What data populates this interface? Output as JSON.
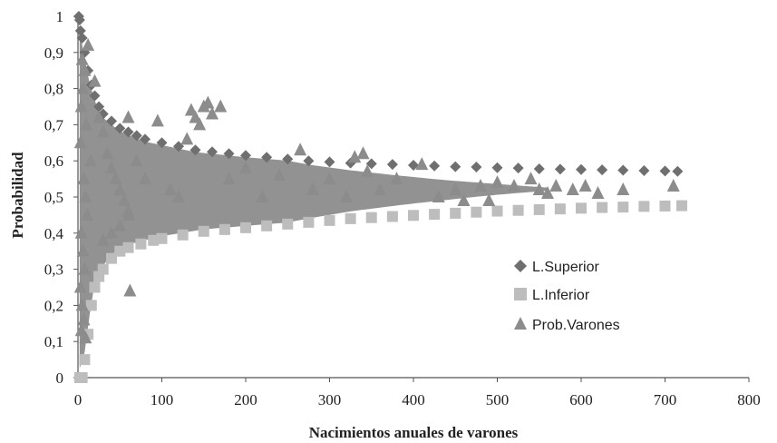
{
  "chart_data": {
    "type": "scatter",
    "title": "",
    "xlabel": "Nacimientos  anuales de varones",
    "ylabel": "Probabilidad",
    "xlim": [
      0,
      800
    ],
    "ylim": [
      0,
      1
    ],
    "x_ticks": [
      "0",
      "100",
      "200",
      "300",
      "400",
      "500",
      "600",
      "700",
      "800"
    ],
    "y_ticks": [
      "0",
      "0,1",
      "0,2",
      "0,3",
      "0,4",
      "0,5",
      "0,6",
      "0,7",
      "0,8",
      "0,9",
      "1"
    ],
    "legend_position": "right-center",
    "grid": false,
    "series": [
      {
        "name": "L.Superior",
        "marker": "diamond",
        "color": "#6f6f6f",
        "points": [
          [
            1,
            1
          ],
          [
            2,
            0.99
          ],
          [
            3,
            0.96
          ],
          [
            5,
            0.94
          ],
          [
            8,
            0.9
          ],
          [
            12,
            0.85
          ],
          [
            16,
            0.81
          ],
          [
            20,
            0.78
          ],
          [
            25,
            0.75
          ],
          [
            30,
            0.73
          ],
          [
            40,
            0.71
          ],
          [
            50,
            0.69
          ],
          [
            60,
            0.68
          ],
          [
            70,
            0.67
          ],
          [
            80,
            0.66
          ],
          [
            100,
            0.65
          ],
          [
            120,
            0.64
          ],
          [
            140,
            0.63
          ],
          [
            160,
            0.625
          ],
          [
            180,
            0.62
          ],
          [
            200,
            0.615
          ],
          [
            225,
            0.61
          ],
          [
            250,
            0.605
          ],
          [
            275,
            0.6
          ],
          [
            300,
            0.597
          ],
          [
            325,
            0.594
          ],
          [
            350,
            0.592
          ],
          [
            375,
            0.59
          ],
          [
            400,
            0.588
          ],
          [
            425,
            0.586
          ],
          [
            450,
            0.584
          ],
          [
            475,
            0.583
          ],
          [
            500,
            0.581
          ],
          [
            525,
            0.58
          ],
          [
            550,
            0.578
          ],
          [
            575,
            0.577
          ],
          [
            600,
            0.576
          ],
          [
            625,
            0.575
          ],
          [
            650,
            0.574
          ],
          [
            675,
            0.573
          ],
          [
            700,
            0.572
          ],
          [
            715,
            0.571
          ]
        ]
      },
      {
        "name": "L.Inferior",
        "marker": "square",
        "color": "#bdbdbd",
        "points": [
          [
            2,
            0
          ],
          [
            5,
            0
          ],
          [
            8,
            0.05
          ],
          [
            12,
            0.12
          ],
          [
            16,
            0.2
          ],
          [
            20,
            0.25
          ],
          [
            25,
            0.28
          ],
          [
            30,
            0.3
          ],
          [
            40,
            0.33
          ],
          [
            50,
            0.35
          ],
          [
            60,
            0.36
          ],
          [
            75,
            0.37
          ],
          [
            90,
            0.38
          ],
          [
            100,
            0.385
          ],
          [
            125,
            0.395
          ],
          [
            150,
            0.405
          ],
          [
            175,
            0.41
          ],
          [
            200,
            0.415
          ],
          [
            225,
            0.42
          ],
          [
            250,
            0.425
          ],
          [
            275,
            0.43
          ],
          [
            300,
            0.435
          ],
          [
            325,
            0.44
          ],
          [
            350,
            0.443
          ],
          [
            375,
            0.446
          ],
          [
            400,
            0.449
          ],
          [
            425,
            0.452
          ],
          [
            450,
            0.455
          ],
          [
            475,
            0.458
          ],
          [
            500,
            0.461
          ],
          [
            525,
            0.463
          ],
          [
            550,
            0.465
          ],
          [
            575,
            0.467
          ],
          [
            600,
            0.469
          ],
          [
            625,
            0.471
          ],
          [
            650,
            0.472
          ],
          [
            675,
            0.474
          ],
          [
            700,
            0.475
          ],
          [
            720,
            0.476
          ]
        ]
      },
      {
        "name": "Prob.Varones",
        "marker": "triangle",
        "color": "#8c8c8c",
        "points": [
          [
            12,
            0.92
          ],
          [
            5,
            0.88
          ],
          [
            8,
            0.85
          ],
          [
            6,
            0.8
          ],
          [
            4,
            0.75
          ],
          [
            10,
            0.7
          ],
          [
            3,
            0.65
          ],
          [
            15,
            0.6
          ],
          [
            7,
            0.55
          ],
          [
            9,
            0.5
          ],
          [
            11,
            0.45
          ],
          [
            4,
            0.4
          ],
          [
            6,
            0.35
          ],
          [
            8,
            0.3
          ],
          [
            3,
            0.25
          ],
          [
            5,
            0.2
          ],
          [
            7,
            0.16
          ],
          [
            4,
            0.13
          ],
          [
            9,
            0.11
          ],
          [
            20,
            0.82
          ],
          [
            25,
            0.72
          ],
          [
            30,
            0.68
          ],
          [
            35,
            0.62
          ],
          [
            40,
            0.58
          ],
          [
            45,
            0.55
          ],
          [
            50,
            0.52
          ],
          [
            55,
            0.49
          ],
          [
            60,
            0.46
          ],
          [
            62,
            0.24
          ],
          [
            30,
            0.38
          ],
          [
            40,
            0.4
          ],
          [
            50,
            0.42
          ],
          [
            60,
            0.45
          ],
          [
            70,
            0.6
          ],
          [
            80,
            0.55
          ],
          [
            60,
            0.72
          ],
          [
            95,
            0.71
          ],
          [
            110,
            0.52
          ],
          [
            120,
            0.5
          ],
          [
            135,
            0.74
          ],
          [
            140,
            0.72
          ],
          [
            145,
            0.7
          ],
          [
            150,
            0.75
          ],
          [
            155,
            0.76
          ],
          [
            160,
            0.73
          ],
          [
            170,
            0.75
          ],
          [
            130,
            0.66
          ],
          [
            180,
            0.55
          ],
          [
            200,
            0.58
          ],
          [
            220,
            0.5
          ],
          [
            240,
            0.56
          ],
          [
            265,
            0.63
          ],
          [
            280,
            0.52
          ],
          [
            300,
            0.55
          ],
          [
            320,
            0.5
          ],
          [
            330,
            0.61
          ],
          [
            340,
            0.62
          ],
          [
            345,
            0.57
          ],
          [
            360,
            0.52
          ],
          [
            380,
            0.55
          ],
          [
            410,
            0.59
          ],
          [
            430,
            0.5
          ],
          [
            450,
            0.52
          ],
          [
            460,
            0.49
          ],
          [
            480,
            0.53
          ],
          [
            490,
            0.49
          ],
          [
            500,
            0.54
          ],
          [
            520,
            0.53
          ],
          [
            540,
            0.55
          ],
          [
            550,
            0.52
          ],
          [
            560,
            0.51
          ],
          [
            570,
            0.53
          ],
          [
            590,
            0.52
          ],
          [
            605,
            0.53
          ],
          [
            620,
            0.51
          ],
          [
            650,
            0.52
          ],
          [
            710,
            0.53
          ]
        ]
      }
    ]
  }
}
